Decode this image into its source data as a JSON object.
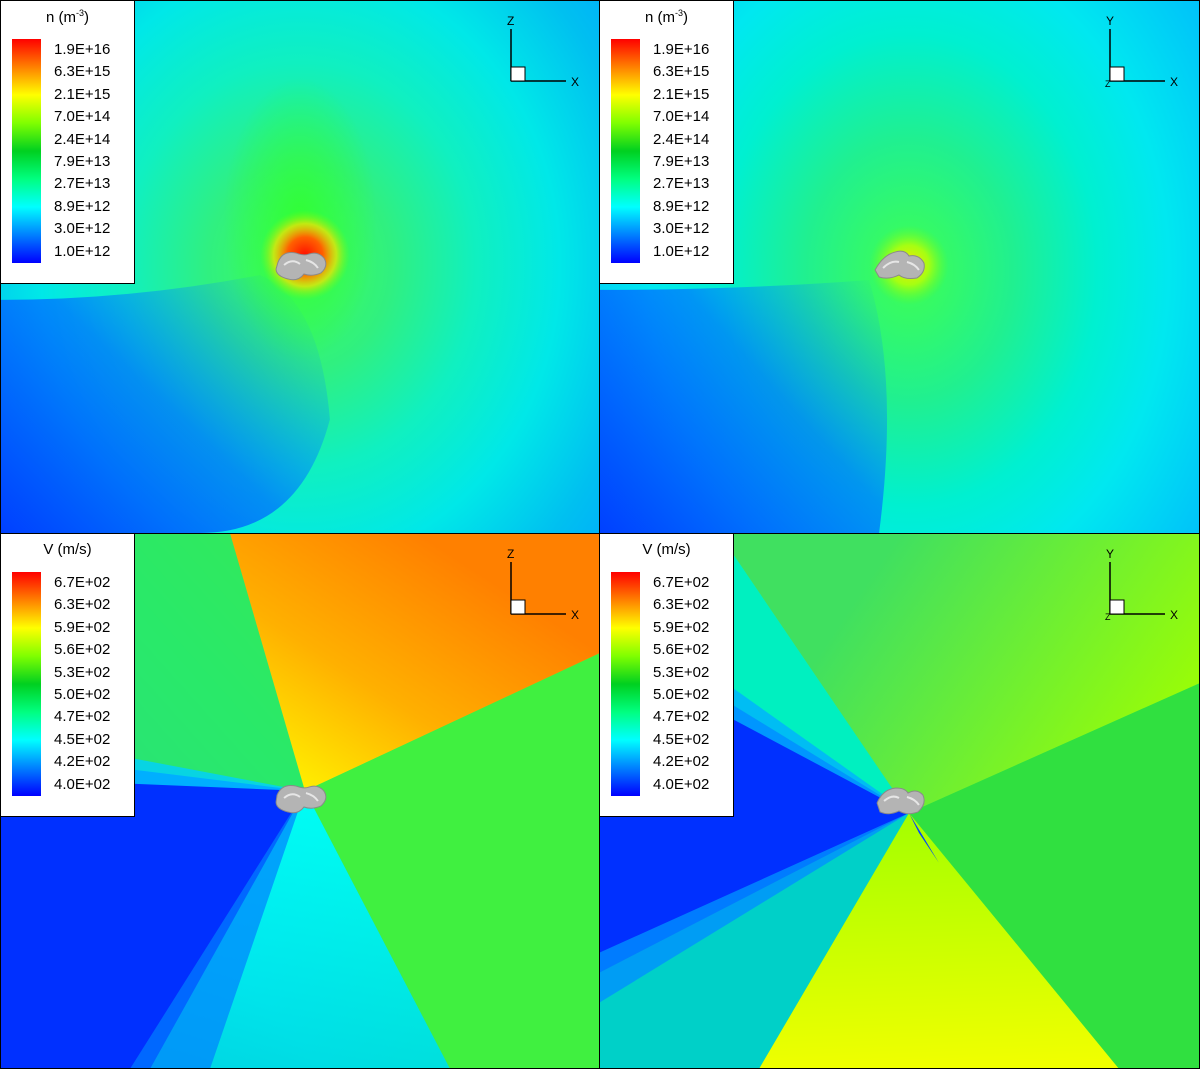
{
  "chart_data": [
    {
      "type": "heatmap",
      "title": "n (m-3)",
      "colorbar": {
        "label": "n",
        "unit_base": "m",
        "unit_exp": "-3",
        "ticks": [
          "1.9E+16",
          "6.3E+15",
          "2.1E+15",
          "7.0E+14",
          "2.4E+14",
          "7.9E+13",
          "2.7E+13",
          "8.9E+12",
          "3.0E+12",
          "1.0E+12"
        ],
        "range": [
          1000000000000.0,
          1.9e+16
        ],
        "scale": "log"
      },
      "axes": {
        "horizontal": "X",
        "vertical": "Z",
        "out_of_plane": ""
      },
      "background": "number density contours around comet nucleus, maximum near nucleus, spiral/lobe structure",
      "nucleus": "grey irregular nucleus at centre"
    },
    {
      "type": "heatmap",
      "title": "n (m-3)",
      "colorbar": {
        "label": "n",
        "unit_base": "m",
        "unit_exp": "-3",
        "ticks": [
          "1.9E+16",
          "6.3E+15",
          "2.1E+15",
          "7.0E+14",
          "2.4E+14",
          "7.9E+13",
          "2.7E+13",
          "8.9E+12",
          "3.0E+12",
          "1.0E+12"
        ],
        "range": [
          1000000000000.0,
          1.9e+16
        ],
        "scale": "log"
      },
      "axes": {
        "horizontal": "X",
        "vertical": "Y",
        "out_of_plane": "Z"
      },
      "background": "number density contours, elongated lobe around nucleus",
      "nucleus": "grey irregular nucleus at centre"
    },
    {
      "type": "heatmap",
      "title": "V (m/s)",
      "colorbar": {
        "label": "V",
        "unit": "(m/s)",
        "ticks": [
          "6.7E+02",
          "6.3E+02",
          "5.9E+02",
          "5.6E+02",
          "5.3E+02",
          "5.0E+02",
          "4.7E+02",
          "4.5E+02",
          "4.2E+02",
          "4.0E+02"
        ],
        "range": [
          400,
          670
        ],
        "scale": "linear"
      },
      "axes": {
        "horizontal": "X",
        "vertical": "Z",
        "out_of_plane": ""
      },
      "background": "gas speed, faster towards upper right, slow wedge to the left",
      "nucleus": "grey irregular nucleus at centre"
    },
    {
      "type": "heatmap",
      "title": "V (m/s)",
      "colorbar": {
        "label": "V",
        "unit": "(m/s)",
        "ticks": [
          "6.7E+02",
          "6.3E+02",
          "5.9E+02",
          "5.6E+02",
          "5.3E+02",
          "5.0E+02",
          "4.7E+02",
          "4.5E+02",
          "4.2E+02",
          "4.0E+02"
        ],
        "range": [
          400,
          670
        ],
        "scale": "linear"
      },
      "axes": {
        "horizontal": "X",
        "vertical": "Y",
        "out_of_plane": "Z"
      },
      "background": "gas speed, slow wedge to the left, faster below",
      "nucleus": "grey irregular nucleus at centre"
    }
  ],
  "colors": {
    "colormap": [
      "#ff0000",
      "#ff8000",
      "#ffff00",
      "#80ff00",
      "#00d020",
      "#00ff80",
      "#00ffff",
      "#0080ff",
      "#0000ff"
    ],
    "nucleus": "#b4b4b4",
    "panel_border": "#000000"
  }
}
